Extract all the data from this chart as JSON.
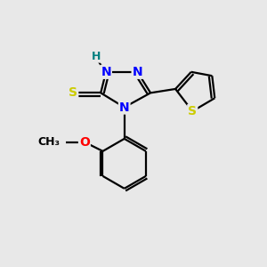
{
  "bg_color": "#e8e8e8",
  "atom_colors": {
    "N": "#0000ff",
    "S": "#cccc00",
    "O": "#ff0000",
    "C": "#000000",
    "H": "#008080"
  },
  "bond_color": "#000000",
  "lw": 1.6,
  "fs": 10
}
